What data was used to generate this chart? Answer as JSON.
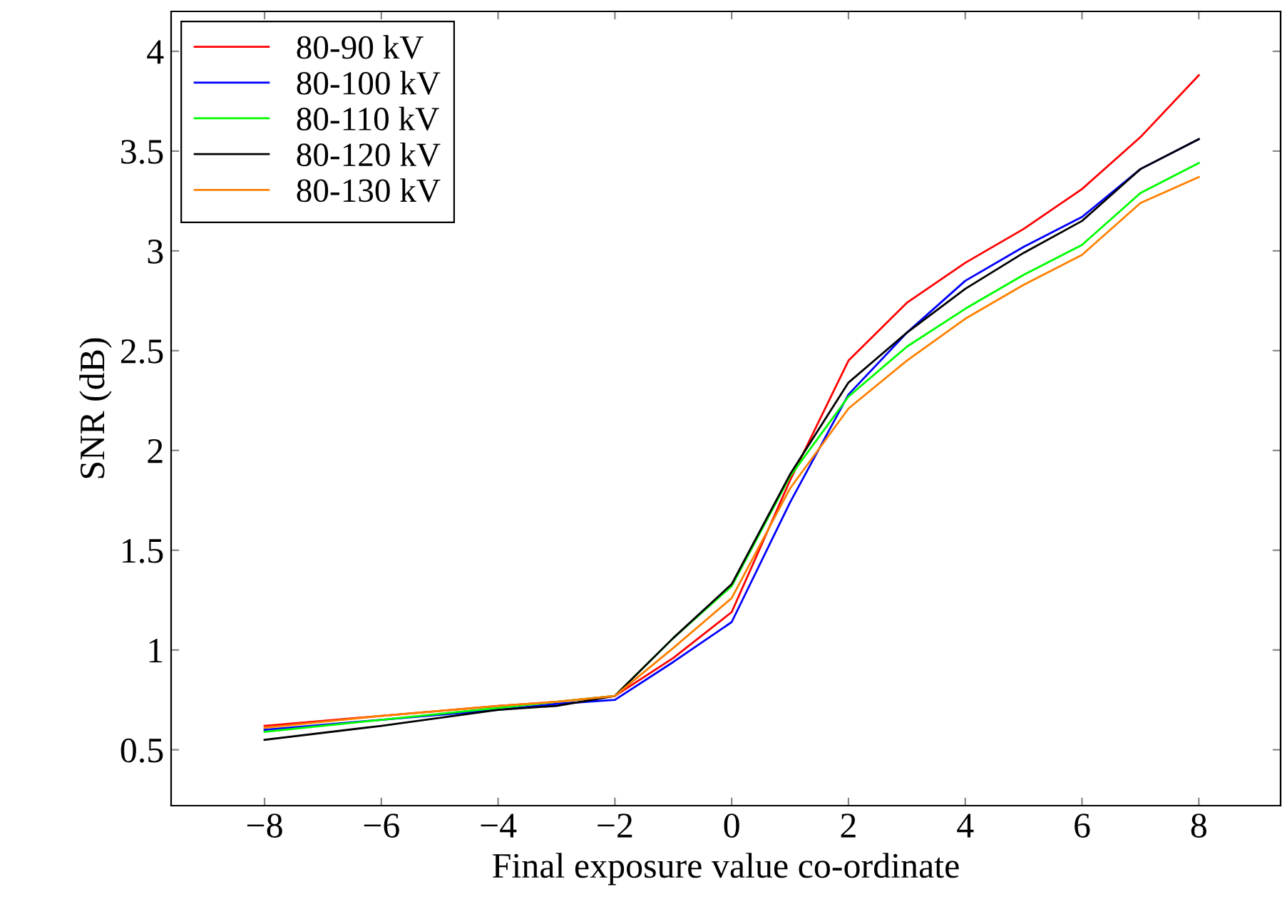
{
  "chart_data": {
    "type": "line",
    "xlabel": "Final exposure value co-ordinate",
    "ylabel": "SNR (dB)",
    "xlim": [
      -9.6,
      9.4
    ],
    "ylim": [
      0.22,
      4.2
    ],
    "xticks": [
      -8,
      -6,
      -4,
      -2,
      0,
      2,
      4,
      6,
      8
    ],
    "yticks": [
      0.5,
      1,
      1.5,
      2,
      2.5,
      3,
      3.5,
      4
    ],
    "grid": false,
    "legend": "top left",
    "marker": "none",
    "line_style": "solid",
    "x": [
      -8,
      -6,
      -4,
      -3,
      -2,
      -1,
      0,
      1,
      2,
      3,
      4,
      5,
      6,
      7,
      8
    ],
    "series": [
      {
        "name": "80-90 kV",
        "color": "#ff0000",
        "values": [
          0.62,
          0.67,
          0.72,
          0.74,
          0.77,
          0.96,
          1.19,
          1.85,
          2.45,
          2.74,
          2.94,
          3.11,
          3.31,
          3.57,
          3.88
        ]
      },
      {
        "name": "80-100 kV",
        "color": "#0000ff",
        "values": [
          0.6,
          0.65,
          0.7,
          0.73,
          0.75,
          0.94,
          1.14,
          1.74,
          2.28,
          2.59,
          2.85,
          3.02,
          3.17,
          3.41,
          3.56
        ]
      },
      {
        "name": "80-110 kV",
        "color": "#00ff00",
        "values": [
          0.59,
          0.65,
          0.71,
          0.74,
          0.77,
          1.06,
          1.32,
          1.87,
          2.27,
          2.52,
          2.71,
          2.88,
          3.03,
          3.29,
          3.44
        ]
      },
      {
        "name": "80-120 kV",
        "color": "#000000",
        "values": [
          0.55,
          0.62,
          0.7,
          0.72,
          0.77,
          1.06,
          1.33,
          1.88,
          2.34,
          2.59,
          2.81,
          2.99,
          3.15,
          3.41,
          3.56
        ]
      },
      {
        "name": "80-130 kV",
        "color": "#ff8000",
        "values": [
          0.61,
          0.67,
          0.72,
          0.74,
          0.77,
          1.01,
          1.26,
          1.81,
          2.21,
          2.45,
          2.66,
          2.83,
          2.98,
          3.24,
          3.37
        ]
      }
    ]
  }
}
